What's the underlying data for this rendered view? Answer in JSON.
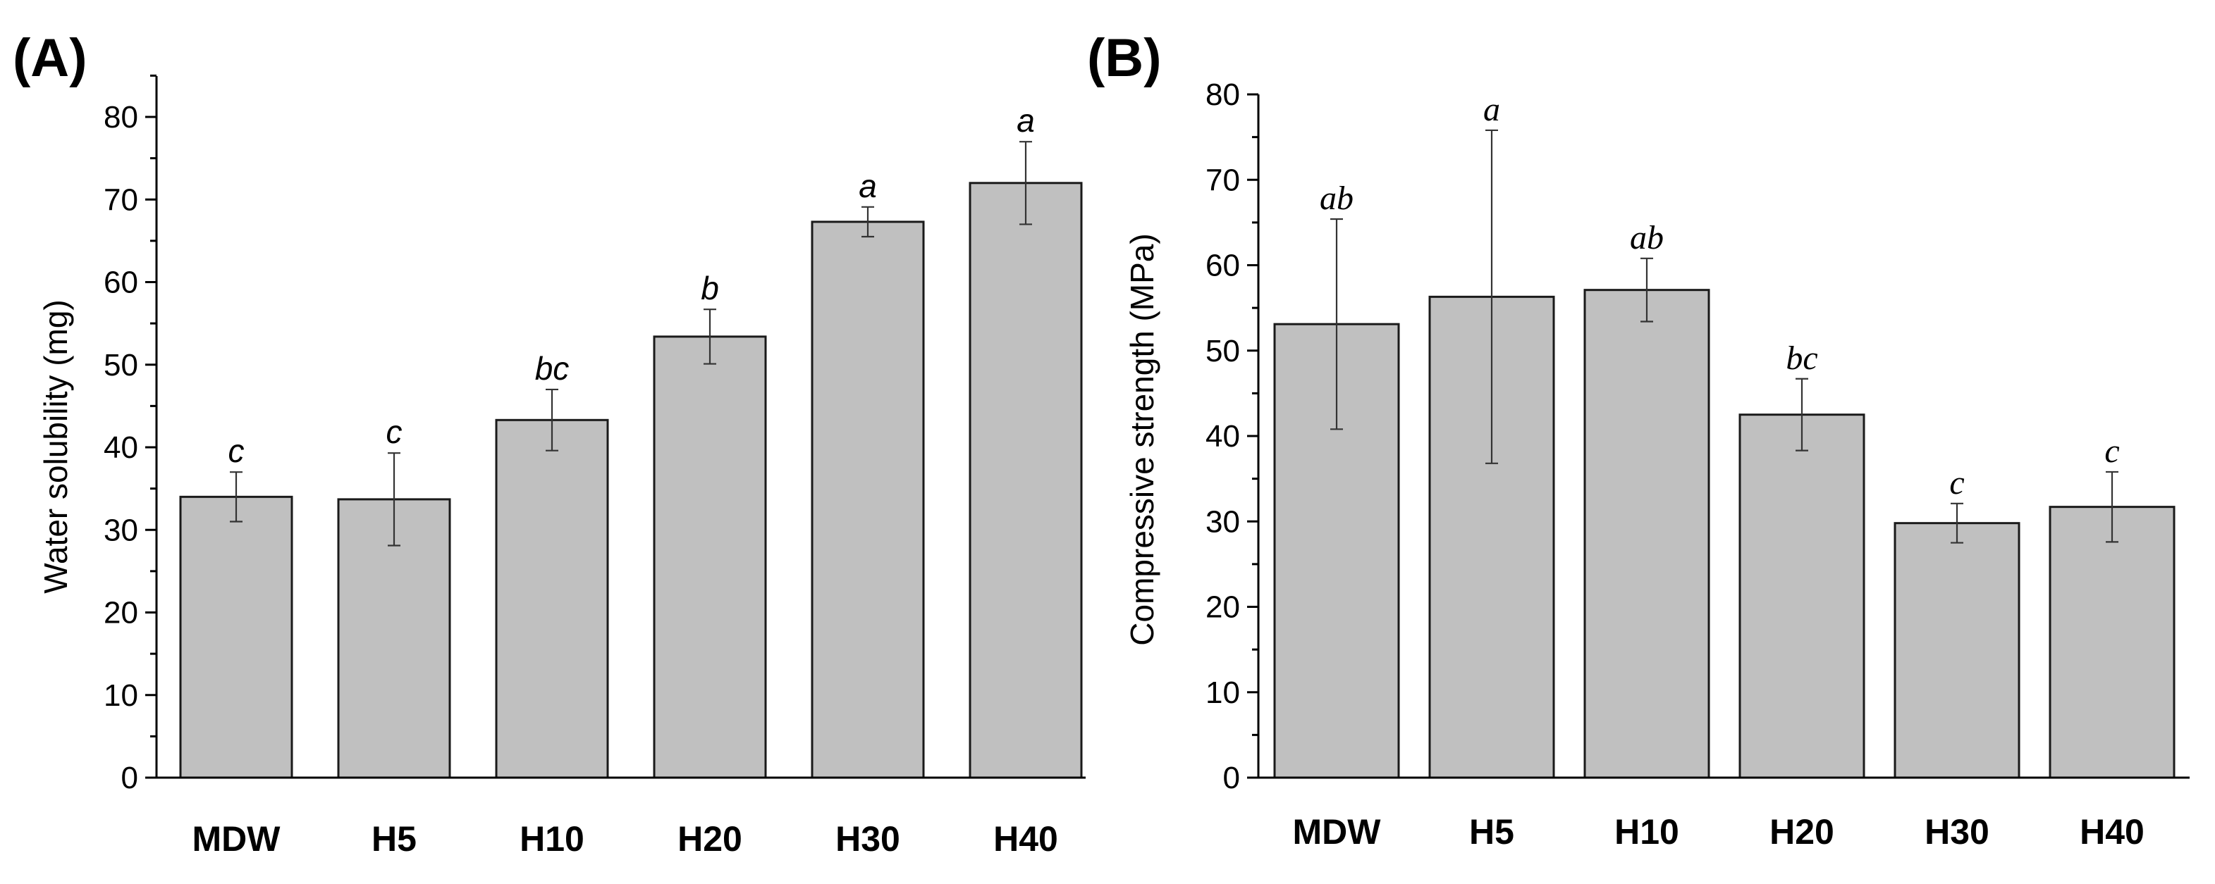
{
  "chart_data": [
    {
      "panel": "(A)",
      "type": "bar",
      "title": "",
      "xlabel": "",
      "ylabel": "Water solubility (mg)",
      "ylim": [
        0,
        85
      ],
      "yticks": [
        0,
        10,
        20,
        30,
        40,
        50,
        60,
        70,
        80
      ],
      "categories": [
        "MDW",
        "H5",
        "H10",
        "H20",
        "H30",
        "H40"
      ],
      "values": [
        34.0,
        33.7,
        43.3,
        53.4,
        67.3,
        72.0
      ],
      "errors": [
        3.0,
        5.6,
        3.7,
        3.3,
        1.8,
        5.0
      ],
      "significance": [
        "c",
        "c",
        "bc",
        "b",
        "a",
        "a"
      ],
      "bar_color": "#c0c0c0"
    },
    {
      "panel": "(B)",
      "type": "bar",
      "title": "",
      "xlabel": "",
      "ylabel": "Compressive strength (MPa)",
      "ylim": [
        0,
        80
      ],
      "yticks": [
        0,
        10,
        20,
        30,
        40,
        50,
        60,
        70,
        80
      ],
      "categories": [
        "MDW",
        "H5",
        "H10",
        "H20",
        "H30",
        "H40"
      ],
      "values": [
        53.1,
        56.3,
        57.1,
        42.5,
        29.8,
        31.7
      ],
      "errors": [
        12.3,
        19.5,
        3.7,
        4.2,
        2.3,
        4.1
      ],
      "significance": [
        "ab",
        "a",
        "ab",
        "bc",
        "c",
        "c"
      ],
      "bar_color": "#c0c0c0"
    }
  ]
}
